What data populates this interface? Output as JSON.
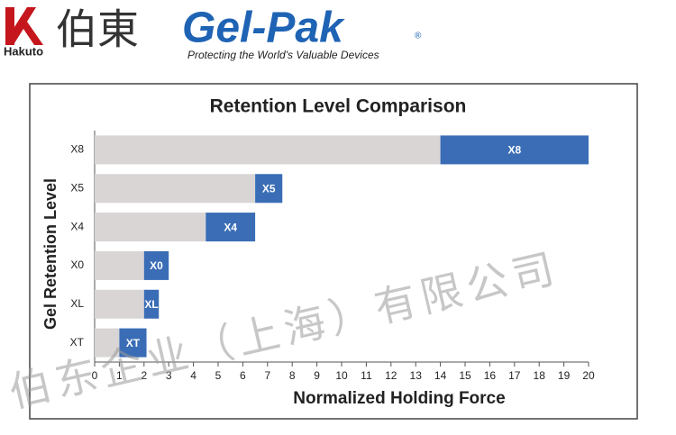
{
  "header": {
    "hakuto": "Hakuto",
    "hakuto_cn": "伯東",
    "brand": "Gel-Pak",
    "registered": "®",
    "tagline": "Protecting the World's Valuable Devices"
  },
  "watermark": "伯东企业（上海）有限公司",
  "chart_data": {
    "type": "stacked-barh",
    "title": "Retention Level Comparison",
    "x_label": "Normalized Holding Force",
    "y_label": "Gel Retention Level",
    "categories": [
      "X8",
      "X5",
      "X4",
      "X0",
      "XL",
      "XT"
    ],
    "series": [
      {
        "color": "#d9d5d5",
        "values": [
          14,
          6.5,
          4.5,
          2,
          2,
          1
        ]
      },
      {
        "color": "#3a6db5",
        "values": [
          6,
          1.1,
          2,
          1,
          0.6,
          1.1
        ]
      }
    ],
    "xlim": [
      0,
      20
    ],
    "xticks": [
      0,
      1,
      2,
      3,
      4,
      5,
      6,
      7,
      8,
      9,
      10,
      11,
      12,
      13,
      14,
      15,
      16,
      17,
      18,
      19,
      20
    ],
    "grid": false
  }
}
